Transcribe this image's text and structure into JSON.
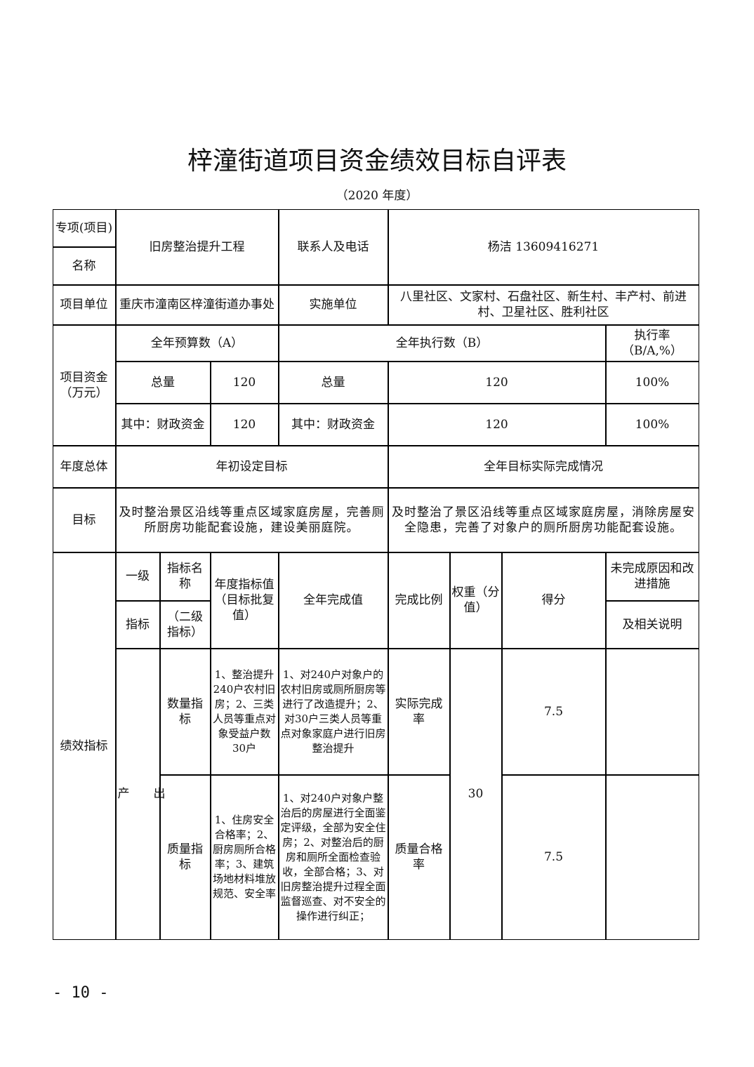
{
  "title": "梓潼街道项目资金绩效目标自评表",
  "subtitle": "（2020 年度）",
  "info": {
    "project_label_1": "专项(项目)",
    "project_label_2": "名称",
    "project_name": "旧房整治提升工程",
    "contact_label": "联系人及电话",
    "contact_value": "杨洁 13609416271",
    "unit_label": "项目单位",
    "unit_value": "重庆市潼南区梓潼街道办事处",
    "impl_label": "实施单位",
    "impl_value": "八里社区、文家村、石盘社区、新生村、丰产村、前进村、卫星社区、胜利社区"
  },
  "funds": {
    "label": "项目资金（万元）",
    "budget_header": "全年预算数（A）",
    "exec_header": "全年执行数（B）",
    "rate_header": "执行率（B/A,%）",
    "rows": [
      {
        "label_a": "总量",
        "value_a": "120",
        "label_b": "总量",
        "value_b": "120",
        "rate": "100%"
      },
      {
        "label_a": "其中：财政资金",
        "value_a": "120",
        "label_b": "其中：财政资金",
        "value_b": "120",
        "rate": "100%"
      }
    ]
  },
  "goals": {
    "label_1": "年度总体",
    "label_2": "目标",
    "initial_header": "年初设定目标",
    "actual_header": "全年目标实际完成情况",
    "initial_text": "及时整治景区沿线等重点区域家庭房屋，完善厕所厨房功能配套设施，建设美丽庭院。",
    "actual_text": "及时整治了景区沿线等重点区域家庭房屋，消除房屋安全隐患，完善了对象户的厕所厨房功能配套设施。"
  },
  "indicators": {
    "label": "绩效指标",
    "headers": {
      "level1_a": "一级",
      "level1_b": "指标",
      "level2_a": "指标名称",
      "level2_b": "（二级指标）",
      "annual_value": "年度指标值（目标批复值）",
      "full_year": "全年完成值",
      "ratio": "完成比例",
      "weight": "权重（分值）",
      "score": "得分",
      "reason_a": "未完成原因和改进措施",
      "reason_b": "及相关说明"
    },
    "level1_value": "产　　出",
    "weight_value": "30",
    "rows": [
      {
        "name": "数量指标",
        "target": "1、整治提升240户农村旧房；2、三类人员等重点对象受益户数30户",
        "actual": "1、对240户对象户的农村旧房或厕所厨房等进行了改造提升；2、对30户三类人员等重点对象家庭户进行旧房整治提升",
        "ratio": "实际完成率",
        "score": "7.5",
        "note": ""
      },
      {
        "name": "质量指标",
        "target": "1、住房安全合格率；2、厨房厕所合格率；3、建筑场地材料堆放规范、安全率",
        "actual": "1、对240户对象户整治后的房屋进行全面鉴定评级，全部为安全住房；2、对整治后的厨房和厕所全面检查验收，全部合格；3、对旧房整治提升过程全面监督巡查、对不安全的操作进行纠正；",
        "ratio": "质量合格率",
        "score": "7.5",
        "note": ""
      }
    ]
  },
  "page_number": "- 10 -"
}
